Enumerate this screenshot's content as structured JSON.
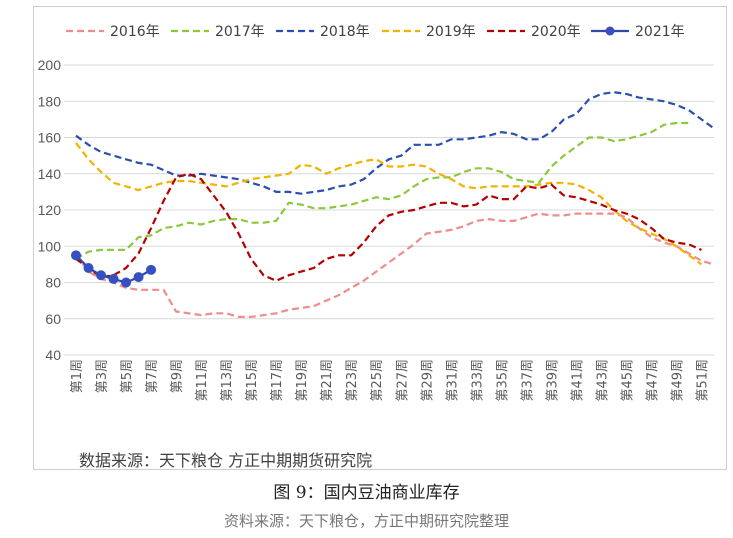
{
  "figure": {
    "inner_source": "数据来源：天下粮仓 方正中期期货研究院",
    "caption": "图 9：国内豆油商业库存",
    "caption_source": "资料来源：天下粮仓，方正中期研究院整理"
  },
  "chart_data": {
    "type": "line",
    "title": "",
    "xlabel": "",
    "ylabel": "",
    "ylim": [
      40,
      200
    ],
    "yticks": [
      40,
      60,
      80,
      100,
      120,
      140,
      160,
      180,
      200
    ],
    "grid": "horizontal",
    "legend_position": "top",
    "x_tick_labels": [
      "第1周",
      "第3周",
      "第5周",
      "第7周",
      "第9周",
      "第11周",
      "第13周",
      "第15周",
      "第17周",
      "第19周",
      "第21周",
      "第23周",
      "第25周",
      "第27周",
      "第29周",
      "第31周",
      "第33周",
      "第35周",
      "第37周",
      "第39周",
      "第41周",
      "第43周",
      "第45周",
      "第47周",
      "第49周",
      "第51周"
    ],
    "series": [
      {
        "name": "2016年",
        "color": "#f08c8c",
        "dash": "dash",
        "x": [
          1,
          2,
          3,
          4,
          5,
          6,
          7,
          8,
          9,
          10,
          11,
          12,
          13,
          14,
          15,
          16,
          17,
          18,
          19,
          20,
          21,
          22,
          23,
          24,
          25,
          26,
          27,
          28,
          29,
          30,
          31,
          32,
          33,
          34,
          35,
          36,
          37,
          38,
          39,
          40,
          41,
          42,
          43,
          44,
          45,
          46,
          47,
          48,
          49,
          50,
          51,
          52
        ],
        "values": [
          95,
          86,
          82,
          80,
          77,
          76,
          76,
          76,
          64,
          63,
          62,
          63,
          63,
          61,
          61,
          62,
          63,
          65,
          66,
          67,
          70,
          73,
          77,
          81,
          86,
          91,
          96,
          101,
          107,
          108,
          109,
          111,
          114,
          115,
          114,
          114,
          116,
          118,
          117,
          117,
          118,
          118,
          118,
          118,
          116,
          110,
          105,
          102,
          100,
          96,
          92,
          90
        ]
      },
      {
        "name": "2017年",
        "color": "#8cc83c",
        "dash": "dash",
        "x": [
          1,
          2,
          3,
          4,
          5,
          6,
          7,
          8,
          9,
          10,
          11,
          12,
          13,
          14,
          15,
          16,
          17,
          18,
          19,
          20,
          21,
          22,
          23,
          24,
          25,
          26,
          27,
          28,
          29,
          30,
          31,
          32,
          33,
          34,
          35,
          36,
          37,
          38,
          39,
          40,
          41,
          42,
          43,
          44,
          45,
          46,
          47,
          48,
          49,
          50
        ],
        "values": [
          93,
          97,
          98,
          98,
          98,
          105,
          106,
          110,
          111,
          113,
          112,
          114,
          115,
          115,
          113,
          113,
          114,
          124,
          123,
          121,
          121,
          122,
          123,
          125,
          127,
          126,
          128,
          133,
          137,
          138,
          138,
          141,
          143,
          143,
          141,
          137,
          136,
          135,
          144,
          150,
          155,
          160,
          160,
          158,
          159,
          161,
          163,
          167,
          168,
          168
        ]
      },
      {
        "name": "2018年",
        "color": "#2a4fae",
        "dash": "dash",
        "x": [
          1,
          2,
          3,
          4,
          5,
          6,
          7,
          8,
          9,
          10,
          11,
          12,
          13,
          14,
          15,
          16,
          17,
          18,
          19,
          20,
          21,
          22,
          23,
          24,
          25,
          26,
          27,
          28,
          29,
          30,
          31,
          32,
          33,
          34,
          35,
          36,
          37,
          38,
          39,
          40,
          41,
          42,
          43,
          44,
          45,
          46,
          47,
          48,
          49,
          50,
          51,
          52
        ],
        "values": [
          161,
          156,
          152,
          150,
          148,
          146,
          145,
          142,
          139,
          139,
          140,
          139,
          138,
          137,
          135,
          133,
          130,
          130,
          129,
          130,
          131,
          133,
          134,
          137,
          143,
          148,
          150,
          156,
          156,
          156,
          159,
          159,
          160,
          161,
          163,
          162,
          159,
          159,
          163,
          170,
          173,
          181,
          184,
          185,
          184,
          182,
          181,
          180,
          178,
          175,
          170,
          165
        ]
      },
      {
        "name": "2019年",
        "color": "#f0b400",
        "dash": "dash",
        "x": [
          1,
          2,
          3,
          4,
          5,
          6,
          7,
          8,
          9,
          10,
          11,
          12,
          13,
          14,
          15,
          16,
          17,
          18,
          19,
          20,
          21,
          22,
          23,
          24,
          25,
          26,
          27,
          28,
          29,
          30,
          31,
          32,
          33,
          34,
          35,
          36,
          37,
          38,
          39,
          40,
          41,
          42,
          43,
          44,
          45,
          46,
          47,
          48,
          49,
          50,
          51
        ],
        "values": [
          157,
          148,
          141,
          135,
          133,
          131,
          133,
          135,
          136,
          136,
          135,
          134,
          133,
          135,
          137,
          138,
          139,
          140,
          145,
          144,
          140,
          143,
          145,
          147,
          148,
          144,
          144,
          145,
          144,
          140,
          137,
          133,
          132,
          133,
          133,
          133,
          133,
          134,
          135,
          135,
          134,
          131,
          127,
          120,
          114,
          110,
          107,
          104,
          100,
          95,
          90
        ]
      },
      {
        "name": "2020年",
        "color": "#b40000",
        "dash": "dash",
        "x": [
          1,
          2,
          3,
          4,
          5,
          6,
          7,
          8,
          9,
          10,
          11,
          12,
          13,
          14,
          15,
          16,
          17,
          18,
          19,
          20,
          21,
          22,
          23,
          24,
          25,
          26,
          27,
          28,
          29,
          30,
          31,
          32,
          33,
          34,
          35,
          36,
          37,
          38,
          39,
          40,
          41,
          42,
          43,
          44,
          45,
          46,
          47,
          48,
          49,
          50,
          51
        ],
        "values": [
          93,
          88,
          83,
          84,
          88,
          96,
          110,
          125,
          138,
          140,
          137,
          128,
          119,
          107,
          93,
          84,
          81,
          84,
          86,
          88,
          93,
          95,
          95,
          102,
          111,
          117,
          119,
          120,
          122,
          124,
          124,
          122,
          123,
          128,
          126,
          126,
          133,
          132,
          134,
          128,
          127,
          125,
          123,
          120,
          118,
          115,
          110,
          104,
          102,
          101,
          98
        ]
      },
      {
        "name": "2021年",
        "color": "#3545a8",
        "dash": "solid",
        "marker": "circle",
        "x": [
          1,
          2,
          3,
          4,
          5,
          6,
          7
        ],
        "values": [
          95,
          88,
          84,
          82,
          80,
          83,
          87
        ]
      }
    ]
  }
}
